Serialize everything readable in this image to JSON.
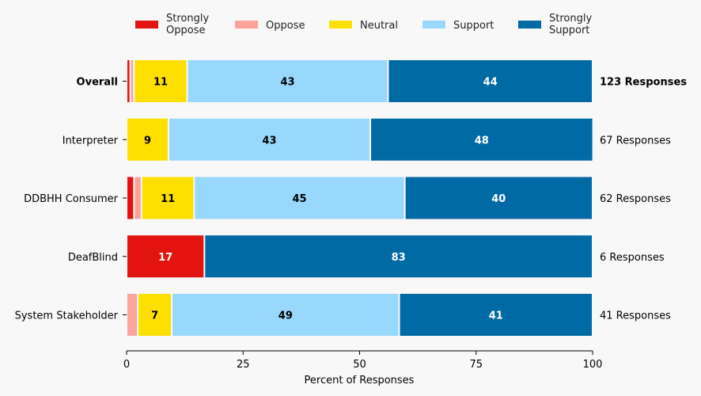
{
  "chart_data": {
    "type": "bar",
    "orientation": "horizontal",
    "stacked": true,
    "title": "",
    "xlabel": "Percent of Responses",
    "ylabel": "",
    "xlim": [
      0,
      100
    ],
    "xticks": [
      0,
      25,
      50,
      75,
      100
    ],
    "legend_position": "top",
    "categories": [
      "Overall",
      "Interpreter",
      "DDBHH Consumer",
      "DeafBlind",
      "System Stakeholder"
    ],
    "bold_categories": [
      "Overall"
    ],
    "response_labels": [
      "123 Responses",
      "67 Responses",
      "62 Responses",
      "6 Responses",
      "41 Responses"
    ],
    "series": [
      {
        "name": "Strongly Oppose",
        "legend_lines": [
          "Strongly",
          "Oppose"
        ],
        "color": "#e3140f",
        "label_color": "#ffffff",
        "values": [
          0.8,
          0,
          1.6,
          16.7,
          0
        ]
      },
      {
        "name": "Oppose",
        "legend_lines": [
          "Oppose"
        ],
        "color": "#fca39c",
        "label_color": "#000000",
        "values": [
          0.8,
          0,
          1.6,
          0,
          2.4
        ]
      },
      {
        "name": "Neutral",
        "legend_lines": [
          "Neutral"
        ],
        "color": "#fddf00",
        "label_color": "#000000",
        "values": [
          11.4,
          9.0,
          11.3,
          0,
          7.3
        ]
      },
      {
        "name": "Support",
        "legend_lines": [
          "Support"
        ],
        "color": "#99d8fd",
        "label_color": "#000000",
        "values": [
          43.1,
          43.3,
          45.2,
          0,
          48.8
        ]
      },
      {
        "name": "Strongly Support",
        "legend_lines": [
          "Strongly",
          "Support"
        ],
        "color": "#006aa4",
        "label_color": "#ffffff",
        "values": [
          43.9,
          47.8,
          40.3,
          83.3,
          41.5
        ]
      }
    ],
    "data_labels": [
      [
        null,
        null,
        "11",
        "43",
        "44"
      ],
      [
        null,
        null,
        "9",
        "43",
        "48"
      ],
      [
        null,
        null,
        "11",
        "45",
        "40"
      ],
      [
        "17",
        null,
        null,
        null,
        "83"
      ],
      [
        null,
        null,
        "7",
        "49",
        "41"
      ]
    ],
    "label_min_percent": 5
  }
}
